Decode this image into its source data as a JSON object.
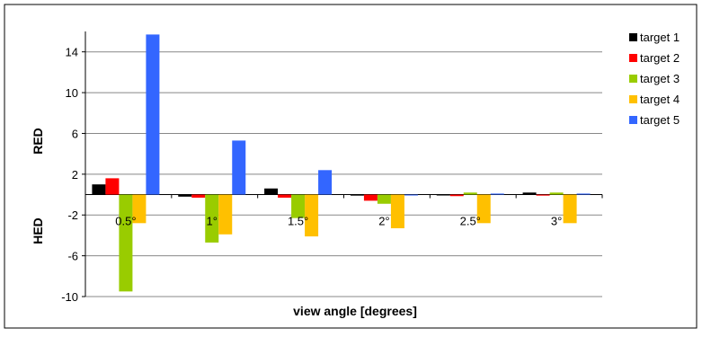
{
  "chart_data": {
    "type": "bar",
    "title": "",
    "xlabel": "view angle [degrees]",
    "ylabel_upper": "RED",
    "ylabel_lower": "HED",
    "categories": [
      "0.5°",
      "1°",
      "1.5°",
      "2°",
      "2.5°",
      "3°"
    ],
    "yticks": [
      14,
      10,
      6,
      2,
      -2,
      -6,
      -10
    ],
    "ylim": [
      -10,
      16
    ],
    "grid": true,
    "legend_position": "right",
    "series": [
      {
        "name": "target 1",
        "color": "#000000",
        "values": [
          1.0,
          -0.2,
          0.6,
          -0.1,
          -0.05,
          0.2
        ]
      },
      {
        "name": "target 2",
        "color": "#ff0000",
        "values": [
          1.6,
          -0.3,
          -0.3,
          -0.6,
          -0.15,
          -0.1
        ]
      },
      {
        "name": "target 3",
        "color": "#99cc00",
        "values": [
          -9.5,
          -4.7,
          -2.3,
          -0.9,
          0.2,
          0.2
        ]
      },
      {
        "name": "target 4",
        "color": "#ffc000",
        "values": [
          -2.8,
          -3.9,
          -4.1,
          -3.3,
          -2.8,
          -2.8
        ]
      },
      {
        "name": "target 5",
        "color": "#3366ff",
        "values": [
          15.7,
          5.3,
          2.4,
          -0.05,
          0.1,
          0.1
        ]
      }
    ]
  }
}
